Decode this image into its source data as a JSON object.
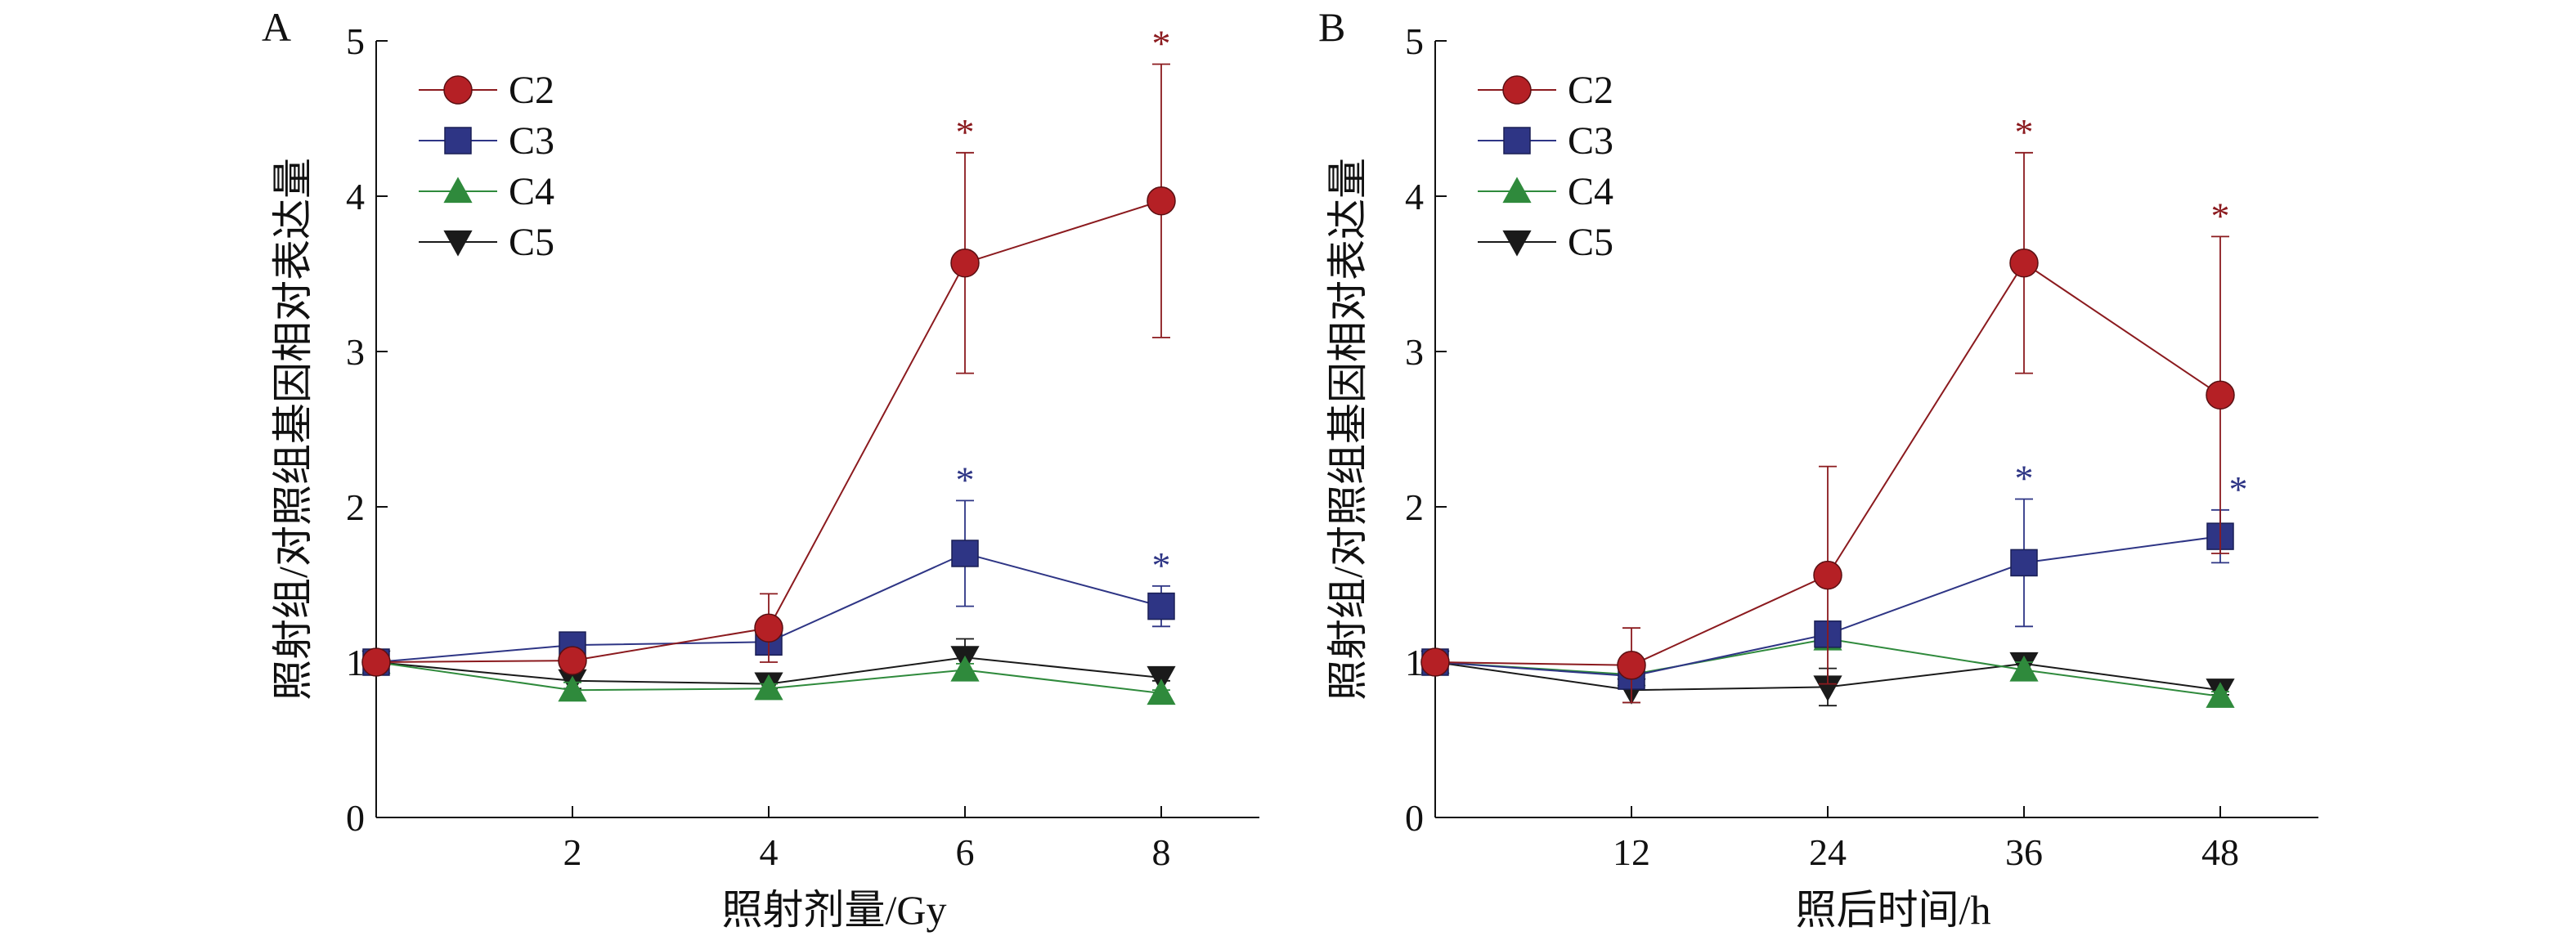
{
  "chart_data": [
    {
      "panel_label": "A",
      "type": "line",
      "xlabel": "照射剂量/Gy",
      "ylabel": "照射组/对照组基因相对表达量",
      "xlim": [
        0,
        9
      ],
      "ylim": [
        0,
        5
      ],
      "x_ticks": [
        2,
        4,
        6,
        8
      ],
      "x_tick_labels": [
        "2",
        "4",
        "6",
        "8"
      ],
      "y_ticks": [
        0,
        1,
        2,
        3,
        4,
        5
      ],
      "y_tick_labels": [
        "0",
        "1",
        "2",
        "3",
        "4",
        "5"
      ],
      "x": [
        0,
        2,
        4,
        6,
        8
      ],
      "legend_position": "top-left",
      "series": [
        {
          "name": "C2",
          "marker": "circle",
          "color": "#b52025",
          "line_color": "#8b1a1e",
          "values": [
            1.0,
            1.01,
            1.22,
            3.57,
            3.97
          ],
          "errors": [
            0,
            0.04,
            0.22,
            0.71,
            0.88
          ],
          "significant": [
            false,
            false,
            false,
            true,
            true
          ]
        },
        {
          "name": "C3",
          "marker": "square",
          "color": "#2e3585",
          "line_color": "#2e3585",
          "values": [
            1.0,
            1.11,
            1.13,
            1.7,
            1.36
          ],
          "errors": [
            0,
            0.03,
            0.04,
            0.34,
            0.13
          ],
          "significant": [
            false,
            false,
            false,
            true,
            true
          ]
        },
        {
          "name": "C4",
          "marker": "triangle-up",
          "color": "#2f8a3c",
          "line_color": "#2f8a3c",
          "values": [
            1.0,
            0.82,
            0.83,
            0.95,
            0.8
          ],
          "errors": [
            0,
            0.05,
            0.03,
            0.04,
            0.02
          ],
          "significant": [
            false,
            false,
            false,
            false,
            false
          ]
        },
        {
          "name": "C5",
          "marker": "triangle-down",
          "color": "#1a1a1a",
          "line_color": "#1a1a1a",
          "values": [
            1.0,
            0.88,
            0.86,
            1.03,
            0.9
          ],
          "errors": [
            0,
            0.05,
            0.03,
            0.12,
            0.02
          ],
          "significant": [
            false,
            false,
            false,
            false,
            false
          ]
        }
      ],
      "annotation_symbol": "*"
    },
    {
      "panel_label": "B",
      "type": "line",
      "xlabel": "照后时间/h",
      "ylabel": "照射组/对照组基因相对表达量",
      "xlim": [
        0,
        54
      ],
      "ylim": [
        0,
        5
      ],
      "x_ticks": [
        12,
        24,
        36,
        48
      ],
      "x_tick_labels": [
        "12",
        "24",
        "36",
        "48"
      ],
      "y_ticks": [
        0,
        1,
        2,
        3,
        4,
        5
      ],
      "y_tick_labels": [
        "0",
        "1",
        "2",
        "3",
        "4",
        "5"
      ],
      "x": [
        0,
        12,
        24,
        36,
        48
      ],
      "legend_position": "top-left",
      "series": [
        {
          "name": "C2",
          "marker": "circle",
          "color": "#b52025",
          "line_color": "#8b1a1e",
          "values": [
            1.0,
            0.98,
            1.56,
            3.57,
            2.72
          ],
          "errors": [
            0,
            0.24,
            0.7,
            0.71,
            1.02
          ],
          "significant": [
            false,
            false,
            false,
            true,
            true
          ]
        },
        {
          "name": "C3",
          "marker": "square",
          "color": "#2e3585",
          "line_color": "#2e3585",
          "values": [
            1.0,
            0.91,
            1.18,
            1.64,
            1.81
          ],
          "errors": [
            0,
            0.04,
            0.06,
            0.41,
            0.17
          ],
          "significant": [
            false,
            false,
            false,
            true,
            true
          ]
        },
        {
          "name": "C4",
          "marker": "triangle-up",
          "color": "#2f8a3c",
          "line_color": "#2f8a3c",
          "values": [
            1.0,
            0.92,
            1.15,
            0.95,
            0.78
          ],
          "errors": [
            0,
            0.03,
            0.05,
            0.05,
            0.03
          ],
          "significant": [
            false,
            false,
            false,
            false,
            false
          ]
        },
        {
          "name": "C5",
          "marker": "triangle-down",
          "color": "#1a1a1a",
          "line_color": "#1a1a1a",
          "values": [
            1.0,
            0.82,
            0.84,
            0.99,
            0.82
          ],
          "errors": [
            0,
            0.08,
            0.12,
            0.06,
            0.03
          ],
          "significant": [
            false,
            false,
            false,
            false,
            false
          ]
        }
      ],
      "annotation_symbol": "*"
    }
  ]
}
